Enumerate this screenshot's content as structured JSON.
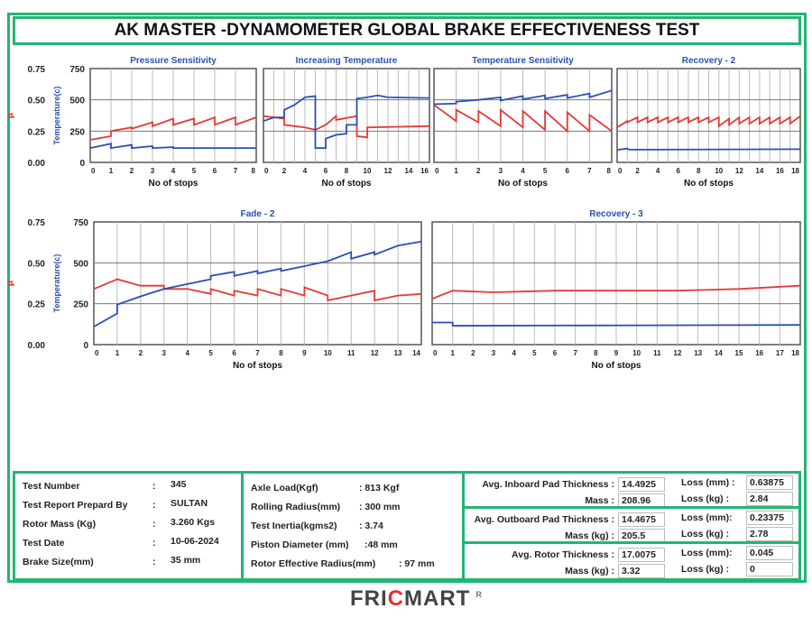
{
  "title": "AK MASTER -DYNAMOMETER GLOBAL BRAKE EFFECTIVENESS TEST",
  "colors": {
    "mu": "#e53935",
    "temp": "#2a4fb5",
    "title": "#2a4fb5",
    "border": "#22b573"
  },
  "chart_data": [
    {
      "type": "line",
      "title": "Pressure Sensitivity",
      "xlabel": "No of stops",
      "ylabel_left": "μ",
      "ylabel_right": "Temperature(c)",
      "xlim": [
        0,
        8
      ],
      "xticks": [
        "0",
        "1",
        "2",
        "3",
        "4",
        "5",
        "6",
        "7",
        "8"
      ],
      "mu_ticks": [
        "0.00",
        "0.25",
        "0.50",
        "0.75"
      ],
      "temp_ticks": [
        "0",
        "250",
        "500",
        "750"
      ],
      "mu_lim": [
        0,
        0.75
      ],
      "temp_lim": [
        0,
        750
      ],
      "series": [
        {
          "name": "μ",
          "values": [
            [
              0,
              0.18
            ],
            [
              1,
              0.21
            ],
            [
              1,
              0.25
            ],
            [
              2,
              0.28
            ],
            [
              2,
              0.27
            ],
            [
              3,
              0.32
            ],
            [
              3,
              0.29
            ],
            [
              4,
              0.35
            ],
            [
              4,
              0.3
            ],
            [
              5,
              0.35
            ],
            [
              5,
              0.3
            ],
            [
              6,
              0.36
            ],
            [
              6,
              0.3
            ],
            [
              7,
              0.36
            ],
            [
              7,
              0.3
            ],
            [
              8,
              0.36
            ]
          ]
        },
        {
          "name": "Temperature",
          "values": [
            [
              0,
              115
            ],
            [
              1,
              150
            ],
            [
              1,
              115
            ],
            [
              2,
              140
            ],
            [
              2,
              115
            ],
            [
              3,
              130
            ],
            [
              3,
              115
            ],
            [
              4,
              122
            ],
            [
              4,
              115
            ],
            [
              8,
              115
            ]
          ]
        }
      ]
    },
    {
      "type": "line",
      "title": "Increasing Temperature",
      "xlabel": "No of stops",
      "xlim": [
        0,
        16
      ],
      "xticks": [
        "0",
        "2",
        "4",
        "6",
        "8",
        "10",
        "12",
        "14",
        "16"
      ],
      "mu_lim": [
        0,
        0.75
      ],
      "temp_lim": [
        0,
        750
      ],
      "series": [
        {
          "name": "μ",
          "values": [
            [
              0,
              0.37
            ],
            [
              2,
              0.35
            ],
            [
              2,
              0.3
            ],
            [
              4,
              0.28
            ],
            [
              5,
              0.26
            ],
            [
              6,
              0.3
            ],
            [
              7,
              0.37
            ],
            [
              7,
              0.34
            ],
            [
              9,
              0.37
            ],
            [
              9,
              0.21
            ],
            [
              10,
              0.2
            ],
            [
              10,
              0.28
            ],
            [
              16,
              0.29
            ]
          ]
        },
        {
          "name": "Temperature",
          "values": [
            [
              0,
              330
            ],
            [
              1,
              360
            ],
            [
              2,
              360
            ],
            [
              2,
              420
            ],
            [
              3,
              460
            ],
            [
              4,
              520
            ],
            [
              5,
              530
            ],
            [
              5,
              115
            ],
            [
              6,
              115
            ],
            [
              6,
              190
            ],
            [
              7,
              220
            ],
            [
              8,
              230
            ],
            [
              8,
              300
            ],
            [
              9,
              300
            ],
            [
              9,
              510
            ],
            [
              10,
              520
            ],
            [
              11,
              535
            ],
            [
              12,
              520
            ],
            [
              16,
              515
            ]
          ]
        }
      ]
    },
    {
      "type": "line",
      "title": "Temperature Sensitivity",
      "xlabel": "No of stops",
      "xlim": [
        0,
        8
      ],
      "xticks": [
        "0",
        "1",
        "2",
        "3",
        "4",
        "5",
        "6",
        "7",
        "8"
      ],
      "mu_lim": [
        0,
        0.75
      ],
      "temp_lim": [
        0,
        750
      ],
      "series": [
        {
          "name": "μ",
          "values": [
            [
              0,
              0.46
            ],
            [
              1,
              0.33
            ],
            [
              1,
              0.42
            ],
            [
              2,
              0.32
            ],
            [
              2,
              0.41
            ],
            [
              3,
              0.29
            ],
            [
              3,
              0.42
            ],
            [
              4,
              0.28
            ],
            [
              4,
              0.41
            ],
            [
              5,
              0.26
            ],
            [
              5,
              0.41
            ],
            [
              6,
              0.25
            ],
            [
              6,
              0.4
            ],
            [
              7,
              0.25
            ],
            [
              7,
              0.38
            ],
            [
              8,
              0.25
            ]
          ]
        },
        {
          "name": "Temperature",
          "values": [
            [
              0,
              465
            ],
            [
              1,
              470
            ],
            [
              1,
              485
            ],
            [
              2,
              500
            ],
            [
              3,
              520
            ],
            [
              3,
              495
            ],
            [
              4,
              530
            ],
            [
              4,
              505
            ],
            [
              5,
              535
            ],
            [
              5,
              510
            ],
            [
              6,
              540
            ],
            [
              6,
              515
            ],
            [
              7,
              550
            ],
            [
              7,
              520
            ],
            [
              8,
              575
            ]
          ]
        }
      ]
    },
    {
      "type": "line",
      "title": "Recovery - 2",
      "xlabel": "No of stops",
      "xlim": [
        0,
        18
      ],
      "xticks": [
        "0",
        "2",
        "4",
        "6",
        "8",
        "10",
        "12",
        "14",
        "16",
        "18"
      ],
      "mu_lim": [
        0,
        0.75
      ],
      "temp_lim": [
        0,
        750
      ],
      "series": [
        {
          "name": "μ",
          "values": [
            [
              0,
              0.28
            ],
            [
              1,
              0.33
            ],
            [
              1,
              0.32
            ],
            [
              2,
              0.36
            ],
            [
              2,
              0.32
            ],
            [
              3,
              0.36
            ],
            [
              3,
              0.32
            ],
            [
              4,
              0.36
            ],
            [
              4,
              0.32
            ],
            [
              5,
              0.36
            ],
            [
              5,
              0.32
            ],
            [
              6,
              0.36
            ],
            [
              6,
              0.32
            ],
            [
              7,
              0.36
            ],
            [
              7,
              0.32
            ],
            [
              8,
              0.36
            ],
            [
              8,
              0.32
            ],
            [
              9,
              0.36
            ],
            [
              9,
              0.32
            ],
            [
              10,
              0.36
            ],
            [
              10,
              0.29
            ],
            [
              11,
              0.35
            ],
            [
              11,
              0.3
            ],
            [
              12,
              0.36
            ],
            [
              12,
              0.31
            ],
            [
              13,
              0.36
            ],
            [
              13,
              0.31
            ],
            [
              14,
              0.36
            ],
            [
              14,
              0.31
            ],
            [
              15,
              0.36
            ],
            [
              15,
              0.31
            ],
            [
              16,
              0.36
            ],
            [
              16,
              0.31
            ],
            [
              17,
              0.36
            ],
            [
              17,
              0.31
            ],
            [
              18,
              0.37
            ]
          ]
        },
        {
          "name": "Temperature",
          "values": [
            [
              0,
              100
            ],
            [
              1,
              110
            ],
            [
              1.2,
              102
            ],
            [
              18,
              105
            ]
          ]
        }
      ]
    },
    {
      "type": "line",
      "title": "Fade - 2",
      "xlabel": "No of stops",
      "xlim": [
        0,
        14
      ],
      "xticks": [
        "0",
        "1",
        "2",
        "3",
        "4",
        "5",
        "6",
        "7",
        "8",
        "9",
        "10",
        "11",
        "12",
        "13",
        "14"
      ],
      "mu_ticks": [
        "0.00",
        "0.25",
        "0.50",
        "0.75"
      ],
      "temp_ticks": [
        "0",
        "250",
        "500",
        "750"
      ],
      "mu_lim": [
        0,
        0.75
      ],
      "temp_lim": [
        0,
        750
      ],
      "series": [
        {
          "name": "μ",
          "values": [
            [
              0,
              0.34
            ],
            [
              1,
              0.4
            ],
            [
              2,
              0.36
            ],
            [
              3,
              0.36
            ],
            [
              3,
              0.34
            ],
            [
              4,
              0.34
            ],
            [
              5,
              0.31
            ],
            [
              5,
              0.34
            ],
            [
              6,
              0.3
            ],
            [
              6,
              0.33
            ],
            [
              7,
              0.3
            ],
            [
              7,
              0.34
            ],
            [
              8,
              0.3
            ],
            [
              8,
              0.34
            ],
            [
              9,
              0.3
            ],
            [
              9,
              0.35
            ],
            [
              10,
              0.3
            ],
            [
              10,
              0.27
            ],
            [
              11,
              0.3
            ],
            [
              12,
              0.33
            ],
            [
              12,
              0.27
            ],
            [
              13,
              0.3
            ],
            [
              14,
              0.31
            ]
          ]
        },
        {
          "name": "Temperature",
          "values": [
            [
              0,
              110
            ],
            [
              1,
              190
            ],
            [
              1,
              245
            ],
            [
              2,
              295
            ],
            [
              3,
              340
            ],
            [
              4,
              370
            ],
            [
              5,
              400
            ],
            [
              5,
              420
            ],
            [
              6,
              445
            ],
            [
              6,
              420
            ],
            [
              7,
              450
            ],
            [
              7,
              435
            ],
            [
              8,
              465
            ],
            [
              8,
              450
            ],
            [
              9,
              480
            ],
            [
              10,
              510
            ],
            [
              11,
              565
            ],
            [
              11,
              525
            ],
            [
              12,
              565
            ],
            [
              12,
              550
            ],
            [
              13,
              605
            ],
            [
              14,
              630
            ]
          ]
        }
      ]
    },
    {
      "type": "line",
      "title": "Recovery - 3",
      "xlabel": "No of stops",
      "xlim": [
        0,
        18
      ],
      "xticks": [
        "0",
        "1",
        "2",
        "3",
        "4",
        "5",
        "6",
        "7",
        "8",
        "9",
        "10",
        "11",
        "12",
        "13",
        "14",
        "15",
        "16",
        "17",
        "18"
      ],
      "mu_lim": [
        0,
        0.75
      ],
      "temp_lim": [
        0,
        750
      ],
      "series": [
        {
          "name": "μ",
          "values": [
            [
              0,
              0.28
            ],
            [
              1,
              0.33
            ],
            [
              3,
              0.32
            ],
            [
              6,
              0.33
            ],
            [
              9,
              0.33
            ],
            [
              12,
              0.33
            ],
            [
              15,
              0.34
            ],
            [
              18,
              0.36
            ]
          ]
        },
        {
          "name": "Temperature",
          "values": [
            [
              0,
              135
            ],
            [
              1,
              135
            ],
            [
              1,
              115
            ],
            [
              18,
              120
            ]
          ]
        }
      ]
    }
  ],
  "info_left": [
    {
      "label": "Test Number",
      "value": "345"
    },
    {
      "label": "Test Report Prepard By",
      "value": "SULTAN"
    },
    {
      "label": "Rotor Mass (Kg)",
      "value": "3.260 Kgs"
    },
    {
      "label": "Test Date",
      "value": "10-06-2024"
    },
    {
      "label": "Brake Size(mm)",
      "value": "35 mm"
    }
  ],
  "info_mid": [
    {
      "label": "Axle Load(Kgf)",
      "value": ":  813 Kgf"
    },
    {
      "label": "Rolling Radius(mm)",
      "value": ":  300 mm"
    },
    {
      "label": "Test Inertia(kgms2)",
      "value": ":  3.74"
    },
    {
      "label": "Piston Diameter  (mm)",
      "value": ":48 mm"
    },
    {
      "label": "Rotor Effective Radius(mm)",
      "value": ":     97 mm"
    }
  ],
  "info_right": [
    {
      "l1": "Avg. Inboard Pad Thickness  :",
      "v1": "14.4925",
      "l2": "Loss (mm) :",
      "v2": "0.63875",
      "l3": "Mass   :",
      "v3": "208.96",
      "l4": "Loss (kg)  :",
      "v4": "2.84"
    },
    {
      "l1": "Avg. Outboard Pad Thickness :",
      "v1": "14.4675",
      "l2": "Loss (mm):",
      "v2": "0.23375",
      "l3": "Mass (kg) :",
      "v3": "205.5",
      "l4": "Loss (kg)  :",
      "v4": "2.78"
    },
    {
      "l1": "Avg. Rotor Thickness :",
      "v1": "17.0075",
      "l2": "Loss (mm):",
      "v2": "0.045",
      "l3": "Mass (kg) :",
      "v3": "3.32",
      "l4": "Loss (kg)  :",
      "v4": "0"
    }
  ],
  "logo": {
    "text_a": "FRI",
    "text_b": "C",
    "text_c": "MART",
    "reg": "R"
  }
}
